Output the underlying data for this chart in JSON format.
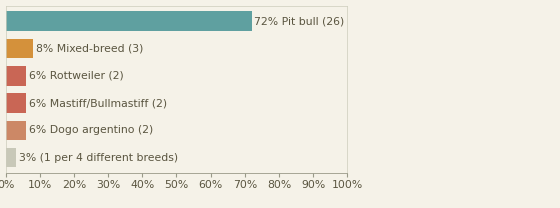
{
  "categories": [
    "72% Pit bull (26)",
    "8% Mixed-breed (3)",
    "6% Rottweiler (2)",
    "6% Mastiff/Bullmastiff (2)",
    "6% Dogo argentino (2)",
    "3% (1 per 4 different breeds)"
  ],
  "values": [
    72,
    8,
    6,
    6,
    6,
    3
  ],
  "bar_colors": [
    "#5fa0a0",
    "#d4913b",
    "#c96655",
    "#c96655",
    "#cc8866",
    "#c8c8b8"
  ],
  "background_color": "#f5f2e8",
  "text_color": "#5a5540",
  "xlim": [
    0,
    100
  ],
  "xtick_labels": [
    "0%",
    "10%",
    "20%",
    "30%",
    "40%",
    "50%",
    "60%",
    "70%",
    "80%",
    "90%",
    "100%"
  ],
  "xtick_values": [
    0,
    10,
    20,
    30,
    40,
    50,
    60,
    70,
    80,
    90,
    100
  ],
  "bar_height": 0.72,
  "label_fontsize": 7.8,
  "tick_fontsize": 7.8
}
